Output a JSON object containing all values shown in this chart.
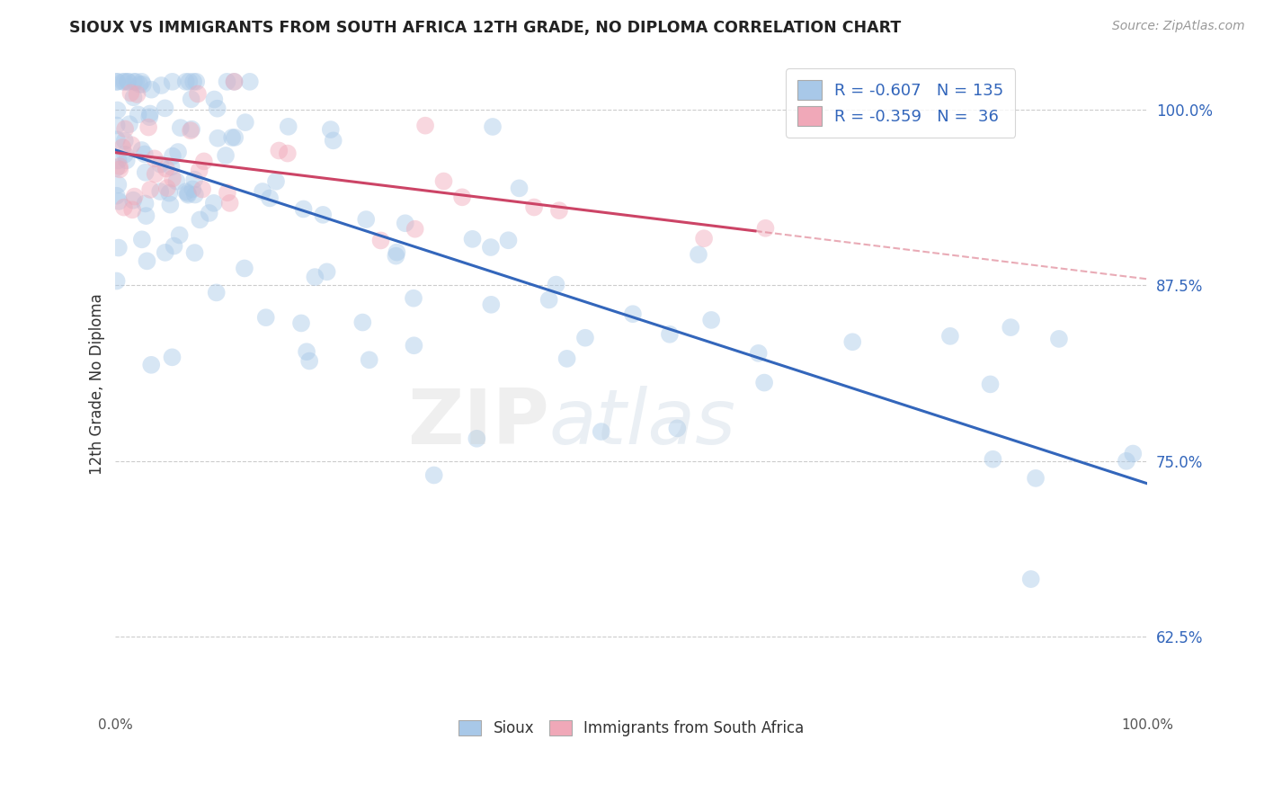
{
  "title": "SIOUX VS IMMIGRANTS FROM SOUTH AFRICA 12TH GRADE, NO DIPLOMA CORRELATION CHART",
  "source_text": "Source: ZipAtlas.com",
  "ylabel": "12th Grade, No Diploma",
  "legend_bottom": [
    "Sioux",
    "Immigrants from South Africa"
  ],
  "blue_R": -0.607,
  "blue_N": 135,
  "pink_R": -0.359,
  "pink_N": 36,
  "blue_color": "#a8c8e8",
  "pink_color": "#f0a8b8",
  "blue_line_color": "#3366bb",
  "pink_line_color": "#cc4466",
  "pink_dash_color": "#e08898",
  "watermark_zip": "ZIP",
  "watermark_atlas": "atlas",
  "background_color": "#ffffff",
  "plot_bg_color": "#ffffff",
  "grid_color": "#cccccc",
  "xlim": [
    0.0,
    1.0
  ],
  "ylim": [
    0.57,
    1.04
  ],
  "yticks": [
    0.625,
    0.75,
    0.875,
    1.0
  ],
  "ytick_labels": [
    "62.5%",
    "75.0%",
    "87.5%",
    "100.0%"
  ],
  "xtick_labels_show": [
    "0.0%",
    "100.0%"
  ],
  "marker_size": 200,
  "marker_alpha": 0.45,
  "line_width": 2.2,
  "blue_intercept": 0.972,
  "blue_slope": -0.255,
  "pink_intercept": 0.965,
  "pink_slope": -0.115,
  "pink_line_xmax": 0.62
}
